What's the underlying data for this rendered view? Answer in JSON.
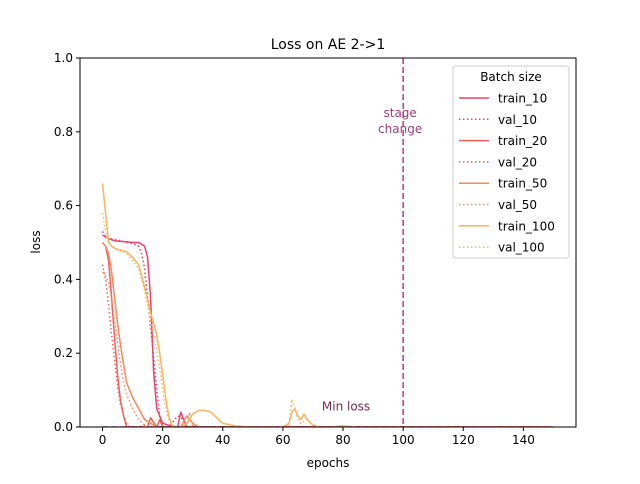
{
  "chart_data": {
    "type": "line",
    "title": "Loss on AE 2->1",
    "xlabel": "epochs",
    "ylabel": "loss",
    "xlim": [
      -7.5,
      157.5
    ],
    "ylim": [
      0,
      1.0
    ],
    "xticks": [
      0,
      20,
      40,
      60,
      80,
      100,
      120,
      140
    ],
    "yticks": [
      0.0,
      0.2,
      0.4,
      0.6,
      0.8,
      1.0
    ],
    "xtick_labels": [
      "0",
      "20",
      "40",
      "60",
      "80",
      "100",
      "120",
      "140"
    ],
    "ytick_labels": [
      "0.0",
      "0.2",
      "0.4",
      "0.6",
      "0.8",
      "1.0"
    ],
    "grid": false,
    "legend": {
      "title": "Batch size",
      "position": "top-right"
    },
    "annotations": [
      {
        "text_lines": [
          "stage",
          "change"
        ],
        "x": 99,
        "y": 0.84,
        "color": "#a03c78"
      },
      {
        "text_lines": [
          "Min loss"
        ],
        "x": 81,
        "y": 0.045,
        "color": "#6b2f52"
      }
    ],
    "vline": {
      "x": 100,
      "color": "#c2368a",
      "style": "dashed"
    },
    "min_loss_line": {
      "x_start": 0,
      "x_end": 148,
      "y": 0,
      "color": "#a03c78",
      "style": "dashed"
    },
    "series": [
      {
        "name": "train_10",
        "color": "#e8436b",
        "style": "solid",
        "x": [
          0,
          2,
          4,
          6,
          8,
          10,
          12,
          14,
          15,
          16,
          17,
          18,
          20,
          22,
          25,
          26,
          27,
          28,
          30,
          32,
          35,
          40,
          150
        ],
        "y": [
          0.52,
          0.51,
          0.505,
          0.503,
          0.502,
          0.5,
          0.5,
          0.49,
          0.46,
          0.35,
          0.15,
          0.05,
          0.01,
          0.005,
          0.0,
          0.04,
          0.02,
          0.0,
          0.0,
          0.0,
          0.0,
          0.0,
          0.0
        ]
      },
      {
        "name": "val_10",
        "color": "#e8436b",
        "style": "dotted",
        "x": [
          0,
          1,
          3,
          6,
          8,
          10,
          12,
          13,
          14,
          15,
          16,
          17,
          18,
          19,
          20,
          22,
          25,
          27,
          28,
          30,
          32,
          40,
          150
        ],
        "y": [
          0.53,
          0.515,
          0.51,
          0.505,
          0.5,
          0.497,
          0.49,
          0.47,
          0.43,
          0.35,
          0.27,
          0.19,
          0.1,
          0.03,
          0.0,
          0.0,
          0.03,
          0.02,
          0.0,
          0.0,
          0.0,
          0.0,
          0.0
        ]
      },
      {
        "name": "train_20",
        "color": "#f0605a",
        "style": "solid",
        "x": [
          0,
          1,
          2,
          3,
          4,
          5,
          6,
          7,
          8,
          10,
          12,
          15,
          16,
          18,
          19,
          20,
          22,
          25,
          150
        ],
        "y": [
          0.5,
          0.49,
          0.45,
          0.35,
          0.24,
          0.14,
          0.07,
          0.03,
          0.0,
          0.0,
          0.0,
          0.0,
          0.025,
          0.0,
          0.02,
          0.0,
          0.0,
          0.0,
          0.0
        ]
      },
      {
        "name": "val_20",
        "color": "#f0605a",
        "style": "dotted",
        "x": [
          0,
          1,
          2,
          3,
          4,
          5,
          6,
          7,
          8,
          9,
          10,
          12,
          16,
          18,
          20,
          25,
          150
        ],
        "y": [
          0.44,
          0.4,
          0.33,
          0.25,
          0.18,
          0.11,
          0.06,
          0.03,
          0.01,
          0.0,
          0.0,
          0.0,
          0.01,
          0.0,
          0.0,
          0.0,
          0.0
        ]
      },
      {
        "name": "train_50",
        "color": "#f5895a",
        "style": "solid",
        "x": [
          0,
          1,
          2,
          3,
          4,
          5,
          6,
          7,
          8,
          10,
          12,
          14,
          16,
          18,
          20,
          22,
          24,
          26,
          28,
          30,
          32,
          35,
          40,
          150
        ],
        "y": [
          0.5,
          0.49,
          0.47,
          0.42,
          0.35,
          0.28,
          0.22,
          0.17,
          0.12,
          0.08,
          0.05,
          0.02,
          0.01,
          0.0,
          0.0,
          0.0,
          0.0,
          0.0,
          0.03,
          0.01,
          0.0,
          0.0,
          0.0,
          0.0
        ]
      },
      {
        "name": "val_50",
        "color": "#f5895a",
        "style": "dotted",
        "x": [
          0,
          1,
          2,
          3,
          4,
          5,
          6,
          7,
          8,
          10,
          12,
          14,
          15,
          16,
          18,
          20,
          22,
          28,
          29,
          30,
          150
        ],
        "y": [
          0.42,
          0.41,
          0.39,
          0.35,
          0.29,
          0.23,
          0.17,
          0.12,
          0.09,
          0.05,
          0.02,
          0.005,
          0.0,
          0.0,
          0.0,
          0.0,
          0.0,
          0.0,
          0.04,
          0.0,
          0.0
        ]
      },
      {
        "name": "train_100",
        "color": "#f7b35e",
        "style": "solid",
        "x": [
          0,
          1,
          2,
          3,
          5,
          8,
          10,
          12,
          14,
          16,
          18,
          19,
          20,
          21,
          22,
          23,
          24,
          26,
          28,
          30,
          32,
          34,
          36,
          38,
          40,
          45,
          50,
          55,
          60,
          62,
          63,
          64,
          65,
          66,
          67,
          68,
          70,
          72,
          75,
          80,
          85,
          150
        ],
        "y": [
          0.66,
          0.58,
          0.5,
          0.49,
          0.48,
          0.475,
          0.46,
          0.44,
          0.38,
          0.31,
          0.25,
          0.2,
          0.14,
          0.08,
          0.03,
          0.005,
          0.0,
          0.0,
          0.01,
          0.035,
          0.045,
          0.045,
          0.04,
          0.025,
          0.01,
          0.002,
          0.0,
          0.0,
          0.0,
          0.01,
          0.04,
          0.05,
          0.03,
          0.02,
          0.035,
          0.02,
          0.005,
          0.0,
          0.0,
          0.003,
          0.0,
          0.0
        ]
      },
      {
        "name": "val_100",
        "color": "#f7b35e",
        "style": "dotted",
        "x": [
          0,
          1,
          2,
          3,
          4,
          6,
          8,
          10,
          12,
          14,
          16,
          18,
          19,
          20,
          21,
          22,
          23,
          24,
          26,
          30,
          34,
          38,
          40,
          45,
          50,
          55,
          60,
          62,
          63,
          64,
          65,
          66,
          68,
          70,
          72,
          75,
          80,
          150
        ],
        "y": [
          0.58,
          0.53,
          0.5,
          0.49,
          0.485,
          0.48,
          0.47,
          0.45,
          0.43,
          0.37,
          0.29,
          0.21,
          0.16,
          0.1,
          0.05,
          0.02,
          0.005,
          0.0,
          0.0,
          0.0,
          0.0,
          0.0,
          0.0,
          0.0,
          0.0,
          0.0,
          0.0,
          0.005,
          0.075,
          0.05,
          0.02,
          0.01,
          0.02,
          0.005,
          0.0,
          0.0,
          0.0,
          0.0
        ]
      }
    ]
  }
}
